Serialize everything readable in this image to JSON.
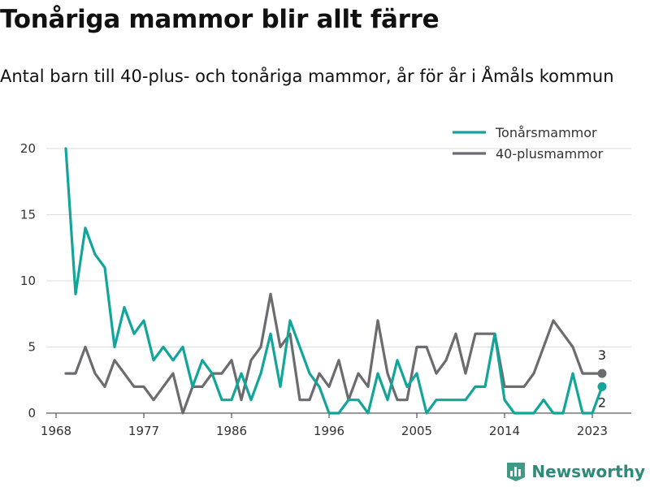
{
  "title": "Tonåriga mammor blir allt färre",
  "subtitle": "Antal barn till 40-plus- och tonåriga mammor, år för år i Åmåls kommun",
  "brand": "Newsworthy",
  "chart_data": {
    "type": "line",
    "x": [
      1969,
      1970,
      1971,
      1972,
      1973,
      1974,
      1975,
      1976,
      1977,
      1978,
      1979,
      1980,
      1981,
      1982,
      1983,
      1984,
      1985,
      1986,
      1987,
      1988,
      1989,
      1990,
      1991,
      1992,
      1993,
      1994,
      1995,
      1996,
      1997,
      1998,
      1999,
      2000,
      2001,
      2002,
      2003,
      2004,
      2005,
      2006,
      2007,
      2008,
      2009,
      2010,
      2011,
      2012,
      2013,
      2014,
      2015,
      2016,
      2017,
      2018,
      2019,
      2020,
      2021,
      2022,
      2023,
      2024
    ],
    "xticks": [
      1968,
      1977,
      1986,
      1996,
      2005,
      2014,
      2023
    ],
    "yticks": [
      0,
      5,
      10,
      15,
      20
    ],
    "xlim": [
      1967,
      2027
    ],
    "ylim": [
      0,
      20
    ],
    "grid": "horizontal",
    "legend_position": "top-right",
    "series": [
      {
        "name": "Tonårsmammor",
        "color": "#13a59a",
        "values": [
          20,
          9,
          14,
          12,
          11,
          5,
          8,
          6,
          7,
          4,
          5,
          4,
          5,
          2,
          4,
          3,
          1,
          1,
          3,
          1,
          3,
          6,
          2,
          7,
          5,
          3,
          2,
          0,
          0,
          1,
          1,
          0,
          3,
          1,
          4,
          2,
          3,
          0,
          1,
          1,
          1,
          1,
          2,
          2,
          6,
          1,
          0,
          0,
          0,
          1,
          0,
          0,
          3,
          0,
          0,
          2
        ],
        "end_label": "2"
      },
      {
        "name": "40-plusmammor",
        "color": "#6b6b70",
        "values": [
          3,
          3,
          5,
          3,
          2,
          4,
          3,
          2,
          2,
          1,
          2,
          3,
          0,
          2,
          2,
          3,
          3,
          4,
          1,
          4,
          5,
          9,
          5,
          6,
          1,
          1,
          3,
          2,
          4,
          1,
          3,
          2,
          7,
          3,
          1,
          1,
          5,
          5,
          3,
          4,
          6,
          3,
          6,
          6,
          6,
          2,
          2,
          2,
          3,
          5,
          7,
          6,
          5,
          3,
          3,
          3
        ],
        "end_label": "3"
      }
    ]
  }
}
